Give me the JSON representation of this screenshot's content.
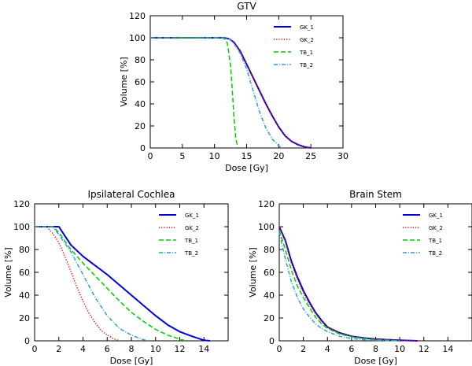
{
  "chart_data": [
    {
      "type": "line",
      "title": "GTV",
      "xlabel": "Dose [Gy]",
      "ylabel": "Volume [%]",
      "xlim": [
        0,
        30
      ],
      "ylim": [
        0,
        120
      ],
      "xticks": [
        0,
        5,
        10,
        15,
        20,
        25,
        30
      ],
      "yticks": [
        0,
        20,
        40,
        60,
        80,
        100,
        120
      ],
      "legend_position": "top-right",
      "series": [
        {
          "name": "GK_1",
          "color": "#0000dd",
          "dash": "solid",
          "width": 2,
          "points": [
            [
              0,
              100
            ],
            [
              11.5,
              100
            ],
            [
              12.3,
              99
            ],
            [
              13,
              96
            ],
            [
              14,
              88
            ],
            [
              15,
              76
            ],
            [
              16,
              64
            ],
            [
              17,
              52
            ],
            [
              18,
              40
            ],
            [
              19,
              29
            ],
            [
              20,
              19
            ],
            [
              21,
              11
            ],
            [
              22,
              6
            ],
            [
              23,
              3
            ],
            [
              24,
              1
            ],
            [
              25,
              0
            ]
          ]
        },
        {
          "name": "GK_2",
          "color": "#ee0000",
          "dash": "dot",
          "width": 1.5,
          "points": [
            [
              0,
              100
            ],
            [
              11.5,
              100
            ],
            [
              12.3,
              99
            ],
            [
              13,
              96
            ],
            [
              14,
              88
            ],
            [
              15,
              76
            ],
            [
              16,
              64
            ],
            [
              17,
              52
            ],
            [
              18,
              40
            ],
            [
              19,
              29
            ],
            [
              20,
              19
            ],
            [
              21,
              11
            ],
            [
              22,
              6
            ],
            [
              23,
              3
            ],
            [
              24,
              1
            ],
            [
              25,
              0
            ]
          ]
        },
        {
          "name": "TB_1",
          "color": "#00cc00",
          "dash": "dash",
          "width": 1.5,
          "points": [
            [
              0,
              100
            ],
            [
              11,
              100
            ],
            [
              11.6,
              99
            ],
            [
              12,
              95
            ],
            [
              12.5,
              75
            ],
            [
              12.8,
              50
            ],
            [
              13,
              30
            ],
            [
              13.3,
              10
            ],
            [
              13.6,
              0
            ]
          ]
        },
        {
          "name": "TB_2",
          "color": "#3399dd",
          "dash": "dashdot",
          "width": 1.5,
          "points": [
            [
              0,
              100
            ],
            [
              11.5,
              100
            ],
            [
              12.3,
              99
            ],
            [
              13,
              95
            ],
            [
              14,
              86
            ],
            [
              15,
              72
            ],
            [
              16,
              52
            ],
            [
              17,
              33
            ],
            [
              18,
              18
            ],
            [
              19,
              8
            ],
            [
              20,
              2
            ],
            [
              20.5,
              0
            ]
          ]
        }
      ]
    },
    {
      "type": "line",
      "title": "Ipsilateral Cochlea",
      "xlabel": "Dose [Gy]",
      "ylabel": "Volume [%]",
      "xlim": [
        0,
        16
      ],
      "ylim": [
        0,
        120
      ],
      "xticks": [
        0,
        2,
        4,
        6,
        8,
        10,
        12,
        14
      ],
      "yticks": [
        0,
        20,
        40,
        60,
        80,
        100,
        120
      ],
      "legend_position": "top-right",
      "series": [
        {
          "name": "GK_1",
          "color": "#0000dd",
          "dash": "solid",
          "width": 2,
          "points": [
            [
              0,
              100
            ],
            [
              2,
              100
            ],
            [
              2.5,
              92
            ],
            [
              3,
              84
            ],
            [
              4,
              74
            ],
            [
              5,
              66
            ],
            [
              6,
              58
            ],
            [
              7,
              49
            ],
            [
              8,
              40
            ],
            [
              9,
              31
            ],
            [
              10,
              22
            ],
            [
              11,
              14
            ],
            [
              12,
              8
            ],
            [
              13,
              4
            ],
            [
              14,
              0.5
            ],
            [
              14.5,
              0
            ]
          ]
        },
        {
          "name": "GK_2",
          "color": "#ee0000",
          "dash": "dot",
          "width": 1.5,
          "points": [
            [
              0,
              100
            ],
            [
              1,
              100
            ],
            [
              1.5,
              94
            ],
            [
              2,
              86
            ],
            [
              2.5,
              74
            ],
            [
              3,
              61
            ],
            [
              3.5,
              47
            ],
            [
              4,
              35
            ],
            [
              4.5,
              24
            ],
            [
              5,
              16
            ],
            [
              5.5,
              9
            ],
            [
              6,
              5
            ],
            [
              6.5,
              2
            ],
            [
              7,
              0
            ]
          ]
        },
        {
          "name": "TB_1",
          "color": "#00cc00",
          "dash": "dash",
          "width": 1.5,
          "points": [
            [
              0,
              100
            ],
            [
              1.5,
              100
            ],
            [
              2,
              95
            ],
            [
              3,
              80
            ],
            [
              4,
              68
            ],
            [
              5,
              57
            ],
            [
              6,
              46
            ],
            [
              7,
              35
            ],
            [
              8,
              25
            ],
            [
              9,
              17
            ],
            [
              10,
              10
            ],
            [
              11,
              5
            ],
            [
              12,
              1.5
            ],
            [
              12.5,
              0
            ]
          ]
        },
        {
          "name": "TB_2",
          "color": "#3399dd",
          "dash": "dashdot",
          "width": 1.5,
          "points": [
            [
              0,
              100
            ],
            [
              1.5,
              100
            ],
            [
              2,
              93
            ],
            [
              3,
              78
            ],
            [
              4,
              58
            ],
            [
              5,
              38
            ],
            [
              6,
              22
            ],
            [
              7,
              11
            ],
            [
              8,
              5
            ],
            [
              9,
              1
            ],
            [
              9.5,
              0
            ]
          ]
        }
      ]
    },
    {
      "type": "line",
      "title": "Brain Stem",
      "xlabel": "Dose [Gy]",
      "ylabel": "Volume [%]",
      "xlim": [
        0,
        16
      ],
      "ylim": [
        0,
        120
      ],
      "xticks": [
        0,
        2,
        4,
        6,
        8,
        10,
        12,
        14
      ],
      "yticks": [
        0,
        20,
        40,
        60,
        80,
        100,
        120
      ],
      "legend_position": "top-right",
      "series": [
        {
          "name": "GK_1",
          "color": "#0000dd",
          "dash": "solid",
          "width": 2,
          "points": [
            [
              0,
              100
            ],
            [
              0.5,
              88
            ],
            [
              1,
              70
            ],
            [
              1.5,
              56
            ],
            [
              2,
              44
            ],
            [
              2.5,
              34
            ],
            [
              3,
              25
            ],
            [
              3.5,
              18
            ],
            [
              4,
              12
            ],
            [
              5,
              7
            ],
            [
              6,
              4
            ],
            [
              7,
              2.5
            ],
            [
              8,
              1.5
            ],
            [
              9,
              1
            ],
            [
              10,
              0.5
            ],
            [
              11,
              0.2
            ],
            [
              11.5,
              0
            ]
          ]
        },
        {
          "name": "GK_2",
          "color": "#ee0000",
          "dash": "dot",
          "width": 1.5,
          "points": [
            [
              0,
              100
            ],
            [
              0.5,
              87
            ],
            [
              1,
              68
            ],
            [
              1.5,
              54
            ],
            [
              2,
              42
            ],
            [
              2.5,
              32
            ],
            [
              3,
              24
            ],
            [
              3.5,
              17
            ],
            [
              4,
              12
            ],
            [
              5,
              7
            ],
            [
              6,
              4
            ],
            [
              7,
              2.5
            ],
            [
              8,
              1.5
            ],
            [
              9,
              1
            ],
            [
              10,
              0.5
            ],
            [
              11,
              0.2
            ],
            [
              11.8,
              0
            ]
          ]
        },
        {
          "name": "TB_1",
          "color": "#00cc00",
          "dash": "dash",
          "width": 1.5,
          "points": [
            [
              0,
              97
            ],
            [
              0.5,
              80
            ],
            [
              1,
              62
            ],
            [
              1.5,
              48
            ],
            [
              2,
              38
            ],
            [
              2.5,
              29
            ],
            [
              3,
              21
            ],
            [
              3.5,
              15
            ],
            [
              4,
              11
            ],
            [
              5,
              6
            ],
            [
              6,
              3.5
            ],
            [
              7,
              2
            ],
            [
              8,
              1
            ],
            [
              9,
              0.5
            ],
            [
              10,
              0
            ]
          ]
        },
        {
          "name": "TB_2",
          "color": "#3399dd",
          "dash": "dashdot",
          "width": 1.5,
          "points": [
            [
              0,
              95
            ],
            [
              0.5,
              72
            ],
            [
              1,
              52
            ],
            [
              1.5,
              38
            ],
            [
              2,
              28
            ],
            [
              2.5,
              21
            ],
            [
              3,
              15
            ],
            [
              3.5,
              11
            ],
            [
              4,
              8
            ],
            [
              5,
              4
            ],
            [
              6,
              2
            ],
            [
              7,
              1
            ],
            [
              8,
              0.5
            ],
            [
              9,
              0.2
            ],
            [
              10,
              0
            ]
          ]
        }
      ]
    }
  ]
}
